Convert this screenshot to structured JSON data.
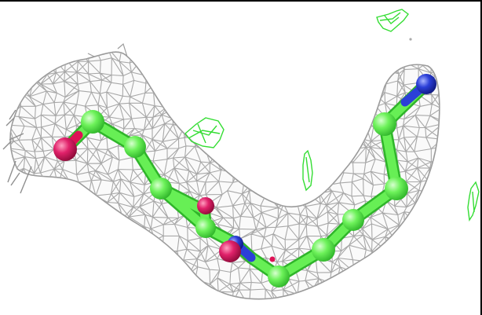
{
  "scene": {
    "background": "#ffffff",
    "mesh_color": "#a9a9a9",
    "difference_density_color": "#33dd33",
    "atom_colors": {
      "carbon": "#55ee44",
      "oxygen": "#dd1155",
      "nitrogen": "#2233cc"
    },
    "bond_color": "#44ee33"
  }
}
